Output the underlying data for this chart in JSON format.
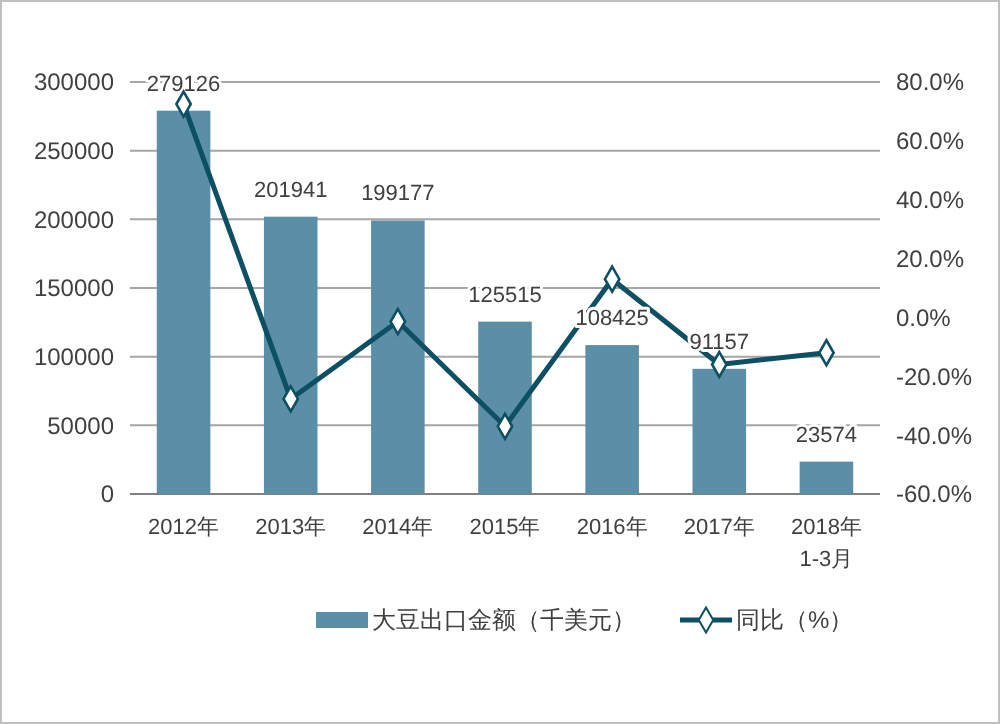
{
  "chart_data": {
    "type": "bar",
    "categories": [
      "2012年",
      "2013年",
      "2014年",
      "2015年",
      "2016年",
      "2017年",
      "2018年\n1-3月"
    ],
    "series": [
      {
        "name": "大豆出口金额（千美元）",
        "color": "#5b8fa8",
        "values": [
          279126,
          201941,
          199177,
          125515,
          108425,
          91157,
          23574
        ],
        "value_labels": [
          "279126",
          "201941",
          "199177",
          "125515",
          "108425",
          "91157",
          "23574"
        ]
      },
      {
        "name": "同比（%）",
        "type": "line",
        "axis": "y2",
        "color": "#0d4f63",
        "values": [
          72.5,
          -27.7,
          -1.4,
          -37.0,
          13,
          -16,
          -12
        ]
      }
    ],
    "ylim": [
      0,
      300000
    ],
    "yticks": [
      0,
      50000,
      100000,
      150000,
      200000,
      250000,
      300000
    ],
    "y2lim": [
      -60,
      80
    ],
    "y2ticks": [
      {
        "value": -60,
        "label": "-60.0%"
      },
      {
        "value": -40,
        "label": "-40.0%"
      },
      {
        "value": -20,
        "label": "-20.0%"
      },
      {
        "value": 0,
        "label": "0.0%"
      },
      {
        "value": 20,
        "label": "20.0%"
      },
      {
        "value": 40,
        "label": "40.0%"
      },
      {
        "value": 60,
        "label": "60.0%"
      },
      {
        "value": 80,
        "label": "80.0%"
      }
    ],
    "grid": "y",
    "legend": "bottom",
    "marker": "diamond",
    "line_style": "solid"
  }
}
